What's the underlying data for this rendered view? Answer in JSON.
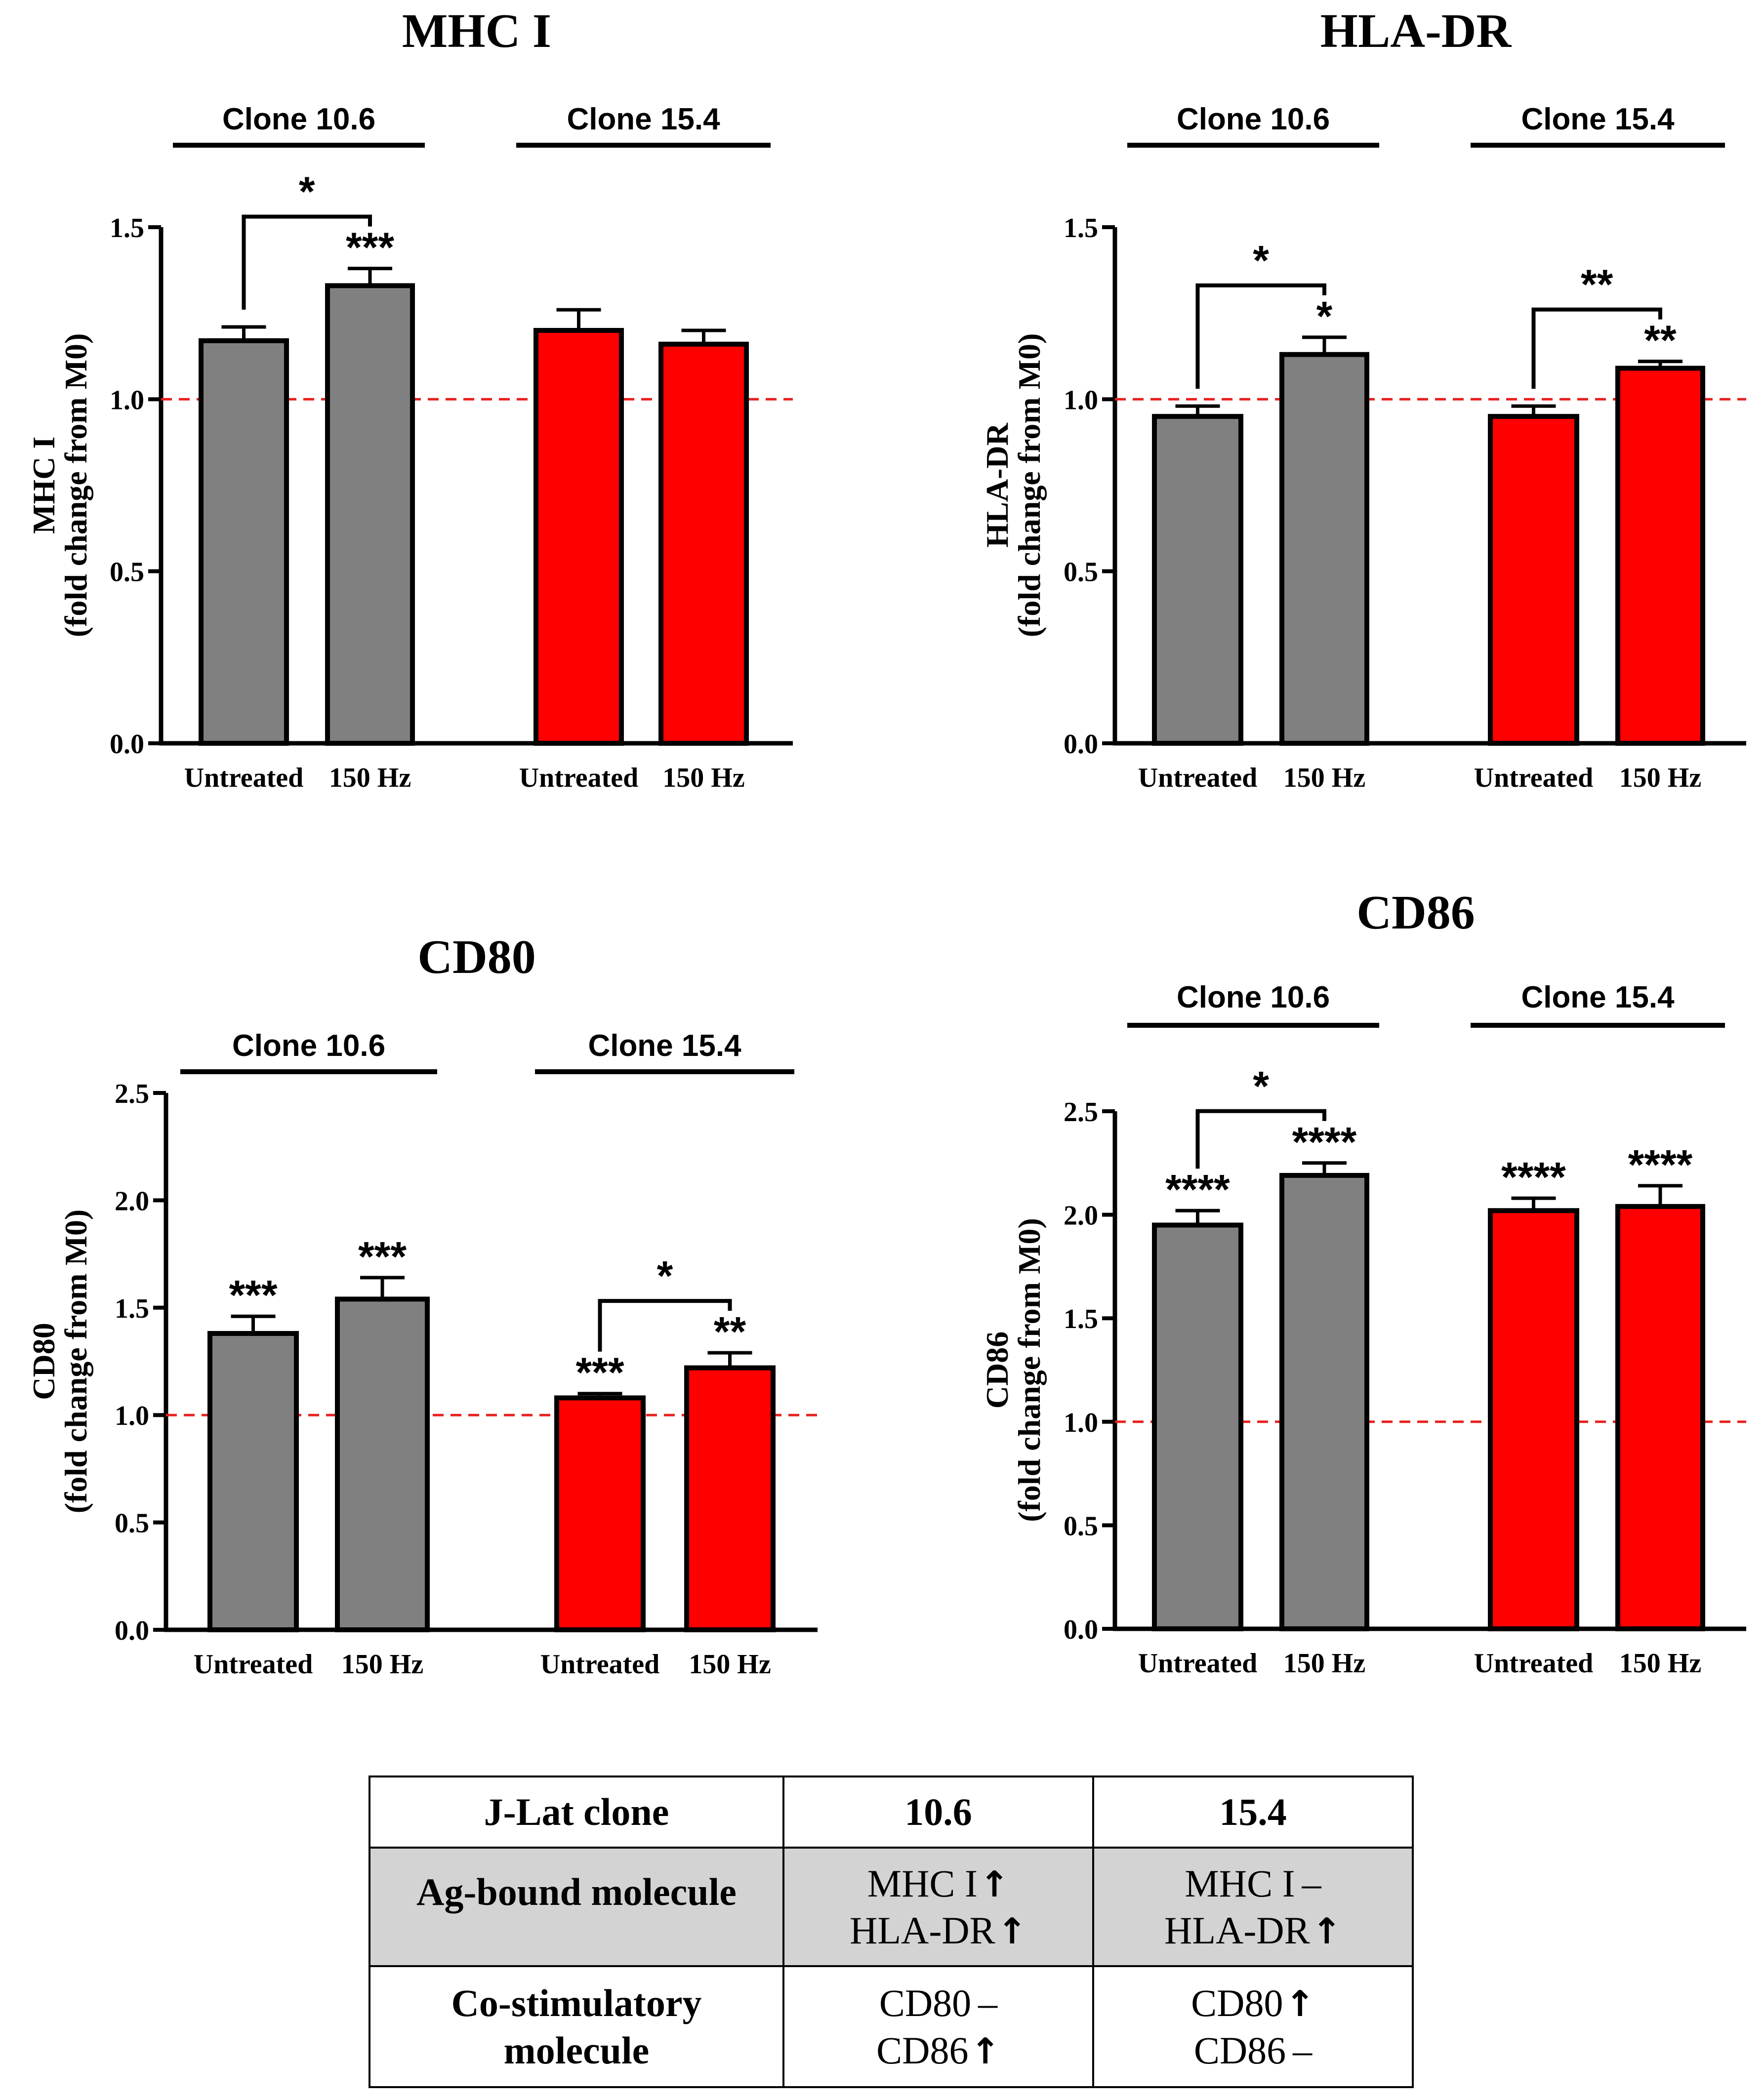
{
  "colors": {
    "clone_10_6": "#808080",
    "clone_15_4": "#ff0000",
    "reference_line": "#e8201f"
  },
  "chart_data": [
    {
      "type": "bar",
      "title": "MHC I",
      "ylabel": [
        "MHC I",
        "(fold change from M0)"
      ],
      "ylim": [
        0,
        1.5
      ],
      "yticks": [
        "0.0",
        "0.5",
        "1.0",
        "1.5"
      ],
      "ytick_values": [
        0,
        0.5,
        1.0,
        1.5
      ],
      "reference_line": 1.0,
      "groups": [
        {
          "name": "Clone 10.6",
          "categories": [
            "Untreated",
            "150 Hz"
          ],
          "values": [
            1.17,
            1.33
          ],
          "errors": [
            0.04,
            0.05
          ],
          "color": "#808080",
          "labels": [
            "",
            "***"
          ],
          "bracket": "*"
        },
        {
          "name": "Clone 15.4",
          "categories": [
            "Untreated",
            "150 Hz"
          ],
          "values": [
            1.2,
            1.16
          ],
          "errors": [
            0.06,
            0.04
          ],
          "color": "#ff0000",
          "labels": [
            "",
            ""
          ],
          "bracket": ""
        }
      ]
    },
    {
      "type": "bar",
      "title": "HLA-DR",
      "ylabel": [
        "HLA-DR",
        "(fold change from M0)"
      ],
      "ylim": [
        0,
        1.5
      ],
      "yticks": [
        "0.0",
        "0.5",
        "1.0",
        "1.5"
      ],
      "ytick_values": [
        0,
        0.5,
        1.0,
        1.5
      ],
      "reference_line": 1.0,
      "groups": [
        {
          "name": "Clone 10.6",
          "categories": [
            "Untreated",
            "150 Hz"
          ],
          "values": [
            0.95,
            1.13
          ],
          "errors": [
            0.03,
            0.05
          ],
          "color": "#808080",
          "labels": [
            "",
            "*"
          ],
          "bracket": "*"
        },
        {
          "name": "Clone 15.4",
          "categories": [
            "Untreated",
            "150 Hz"
          ],
          "values": [
            0.95,
            1.09
          ],
          "errors": [
            0.03,
            0.02
          ],
          "color": "#ff0000",
          "labels": [
            "",
            "**"
          ],
          "bracket": "**"
        }
      ]
    },
    {
      "type": "bar",
      "title": "CD80",
      "ylabel": [
        "CD80",
        "(fold change from M0)"
      ],
      "ylim": [
        0,
        2.5
      ],
      "yticks": [
        "0.0",
        "0.5",
        "1.0",
        "1.5",
        "2.0",
        "2.5"
      ],
      "ytick_values": [
        0,
        0.5,
        1.0,
        1.5,
        2.0,
        2.5
      ],
      "reference_line": 1.0,
      "groups": [
        {
          "name": "Clone 10.6",
          "categories": [
            "Untreated",
            "150 Hz"
          ],
          "values": [
            1.38,
            1.54
          ],
          "errors": [
            0.08,
            0.1
          ],
          "color": "#808080",
          "labels": [
            "***",
            "***"
          ],
          "bracket": ""
        },
        {
          "name": "Clone 15.4",
          "categories": [
            "Untreated",
            "150 Hz"
          ],
          "values": [
            1.08,
            1.22
          ],
          "errors": [
            0.02,
            0.07
          ],
          "color": "#ff0000",
          "labels": [
            "***",
            "**"
          ],
          "bracket": "*"
        }
      ]
    },
    {
      "type": "bar",
      "title": "CD86",
      "ylabel": [
        "CD86",
        "(fold change from M0)"
      ],
      "ylim": [
        0,
        2.5
      ],
      "yticks": [
        "0.0",
        "0.5",
        "1.0",
        "1.5",
        "2.0",
        "2.5"
      ],
      "ytick_values": [
        0,
        0.5,
        1.0,
        1.5,
        2.0,
        2.5
      ],
      "reference_line": 1.0,
      "groups": [
        {
          "name": "Clone 10.6",
          "categories": [
            "Untreated",
            "150 Hz"
          ],
          "values": [
            1.95,
            2.19
          ],
          "errors": [
            0.07,
            0.06
          ],
          "color": "#808080",
          "labels": [
            "****",
            "****"
          ],
          "bracket": "*"
        },
        {
          "name": "Clone 15.4",
          "categories": [
            "Untreated",
            "150 Hz"
          ],
          "values": [
            2.02,
            2.04
          ],
          "errors": [
            0.06,
            0.1
          ],
          "color": "#ff0000",
          "labels": [
            "****",
            "****"
          ],
          "bracket": ""
        }
      ]
    }
  ],
  "table": {
    "headers": [
      "J-Lat clone",
      "10.6",
      "15.4"
    ],
    "row1_label": "Ag-bound molecule",
    "row1_c1": [
      "MHC I",
      "HLA-DR"
    ],
    "row1_c1_marks": [
      "↑",
      "↑"
    ],
    "row1_c2": [
      "MHC I",
      "HLA-DR"
    ],
    "row1_c2_marks": [
      "–",
      "↑"
    ],
    "row2_label": [
      "Co-stimulatory",
      "molecule"
    ],
    "row2_c1": [
      "CD80",
      "CD86"
    ],
    "row2_c1_marks": [
      "–",
      "↑"
    ],
    "row2_c2": [
      "CD80",
      "CD86"
    ],
    "row2_c2_marks": [
      "↑",
      "–"
    ]
  }
}
